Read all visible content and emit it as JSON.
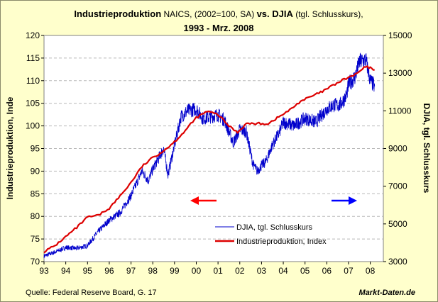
{
  "chart_data": {
    "type": "line",
    "title": {
      "part1_bold": "Industrieproduktion",
      "part2": " NAICS, (2002=100, SA) ",
      "part3_bold": "vs. DJIA",
      "part4": " (tgl. Schlusskurs),",
      "line2": "1993 - Mrz. 2008"
    },
    "ylabel_left": "Industrieproduktion, Inde",
    "ylabel_right": "DJIA, tgl. Schlusskurs",
    "source": "Quelle: Federal Reserve Board, G. 17",
    "brand": "Markt-Daten.de",
    "x_ticks": [
      "93",
      "94",
      "95",
      "96",
      "97",
      "98",
      "99",
      "00",
      "01",
      "02",
      "03",
      "04",
      "05",
      "06",
      "07",
      "08"
    ],
    "y_left_ticks": [
      70,
      75,
      80,
      85,
      90,
      95,
      100,
      105,
      110,
      115,
      120
    ],
    "y_right_ticks": [
      3000,
      5000,
      7000,
      9000,
      11000,
      13000,
      15000
    ],
    "ylim_left": [
      70,
      120
    ],
    "ylim_right": [
      3000,
      15000
    ],
    "xlim": [
      1993,
      2008.6
    ],
    "grid": true,
    "legend_position": "bottom-center inside plot",
    "colors": {
      "djia": "#0000cc",
      "industry": "#dd0000",
      "arrow_left": "#ff0000",
      "arrow_right": "#0000ff",
      "plot_bg": "#ffffff",
      "page_bg": "#ffffcc"
    },
    "series": [
      {
        "name": "DJIA, tgl. Schlusskurs",
        "axis": "right",
        "x": [
          1993.0,
          1993.5,
          1994.0,
          1994.5,
          1995.0,
          1995.5,
          1996.0,
          1996.5,
          1997.0,
          1997.5,
          1997.8,
          1998.0,
          1998.5,
          1998.7,
          1999.0,
          1999.3,
          1999.6,
          2000.0,
          2000.3,
          2000.7,
          2001.0,
          2001.3,
          2001.7,
          2002.0,
          2002.3,
          2002.6,
          2002.8,
          2003.0,
          2003.2,
          2003.5,
          2003.8,
          2004.0,
          2004.5,
          2005.0,
          2005.5,
          2006.0,
          2006.3,
          2006.6,
          2006.9,
          2007.0,
          2007.3,
          2007.5,
          2007.8,
          2008.0,
          2008.2
        ],
        "y": [
          3300,
          3500,
          3750,
          3700,
          3850,
          4600,
          5200,
          5600,
          6500,
          7800,
          7300,
          7900,
          9000,
          7600,
          9200,
          10700,
          11000,
          11100,
          10600,
          10700,
          10800,
          10500,
          9300,
          10000,
          9900,
          8200,
          7800,
          8100,
          8300,
          9200,
          9800,
          10400,
          10200,
          10600,
          10400,
          11100,
          11300,
          11300,
          11800,
          12400,
          12800,
          13600,
          13700,
          12600,
          12300
        ]
      },
      {
        "name": "Industrieproduktion, Index",
        "axis": "left",
        "x": [
          1993.0,
          1993.5,
          1994.0,
          1994.5,
          1995.0,
          1995.5,
          1996.0,
          1996.5,
          1997.0,
          1997.5,
          1998.0,
          1998.5,
          1999.0,
          1999.5,
          2000.0,
          2000.5,
          2001.0,
          2001.5,
          2001.9,
          2002.3,
          2002.8,
          2003.3,
          2003.8,
          2004.3,
          2004.8,
          2005.3,
          2005.8,
          2006.3,
          2006.8,
          2007.3,
          2007.8,
          2008.0,
          2008.2
        ],
        "y": [
          72.2,
          73.5,
          75.5,
          77.5,
          79.8,
          80.2,
          81.8,
          84.5,
          87.5,
          91.0,
          93.0,
          94.5,
          96.5,
          99.0,
          101.8,
          103.2,
          102.5,
          100.0,
          98.6,
          100.5,
          100.5,
          100.5,
          102.0,
          103.5,
          105.5,
          106.5,
          107.6,
          109.0,
          110.3,
          111.3,
          113.1,
          112.8,
          112.4
        ]
      }
    ]
  }
}
